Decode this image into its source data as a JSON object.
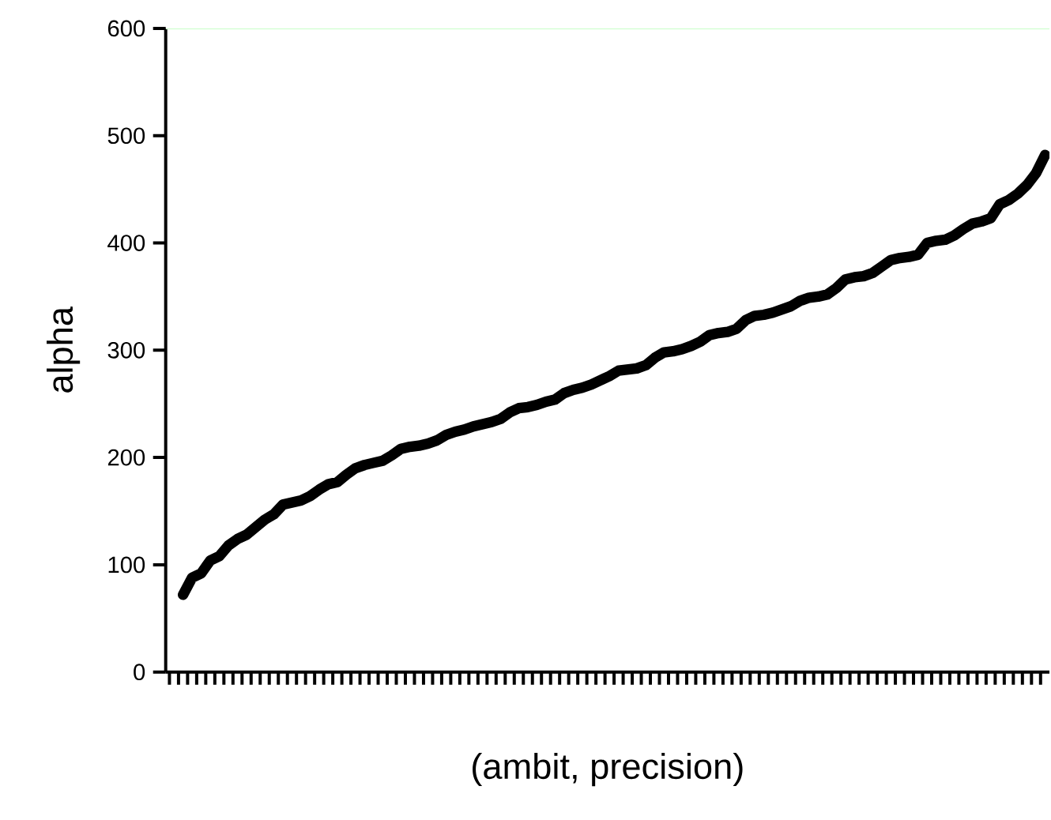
{
  "chart_data": {
    "type": "line",
    "xlabel": "(ambit, precision)",
    "ylabel": "alpha",
    "categories": [
      null,
      null,
      null,
      null,
      null,
      null,
      null,
      null,
      null,
      null,
      null,
      null,
      null,
      null,
      null,
      null,
      null,
      null,
      null,
      null,
      null,
      null,
      null,
      null,
      null,
      null,
      null,
      null,
      null,
      null,
      null,
      null,
      null,
      null,
      null,
      null,
      null,
      null,
      null,
      null,
      null,
      null,
      null,
      null,
      null,
      null,
      null,
      null,
      null,
      null,
      null,
      null,
      null,
      null,
      null,
      null,
      null,
      null,
      null,
      null,
      null,
      null,
      null,
      null,
      null,
      null,
      null,
      null,
      null,
      null,
      null,
      null,
      null,
      null,
      null,
      null,
      null,
      null,
      null,
      null,
      null,
      null,
      null,
      null,
      null,
      null,
      null,
      null,
      null,
      null,
      null,
      null,
      null,
      null,
      null,
      null
    ],
    "series": [
      {
        "color": "#000000",
        "values": [
          72,
          88,
          92,
          104,
          108,
          118,
          124,
          128,
          135,
          142,
          147,
          156,
          158,
          160,
          164,
          170,
          175,
          177,
          184,
          190,
          193,
          195,
          197,
          202,
          208,
          210,
          211,
          213,
          216,
          221,
          224,
          226,
          229,
          231,
          233,
          236,
          242,
          246,
          247,
          249,
          252,
          254,
          260,
          263,
          265,
          268,
          272,
          276,
          281,
          282,
          283,
          286,
          293,
          298,
          299,
          301,
          304,
          308,
          314,
          316,
          317,
          320,
          328,
          332,
          333,
          335,
          338,
          341,
          346,
          349,
          350,
          352,
          358,
          366,
          368,
          369,
          372,
          378,
          384,
          386,
          387,
          389,
          400,
          402,
          403,
          407,
          413,
          418,
          420,
          423,
          436,
          440,
          446,
          454,
          465,
          482
        ]
      }
    ],
    "ylim": [
      0,
      600
    ],
    "yticks": [
      0,
      100,
      200,
      300,
      400,
      500,
      600
    ],
    "marker": "none",
    "line_style": "solid",
    "ref_lines": [
      {
        "axis": "y",
        "value": 600,
        "color": "#ccffcc"
      }
    ]
  }
}
